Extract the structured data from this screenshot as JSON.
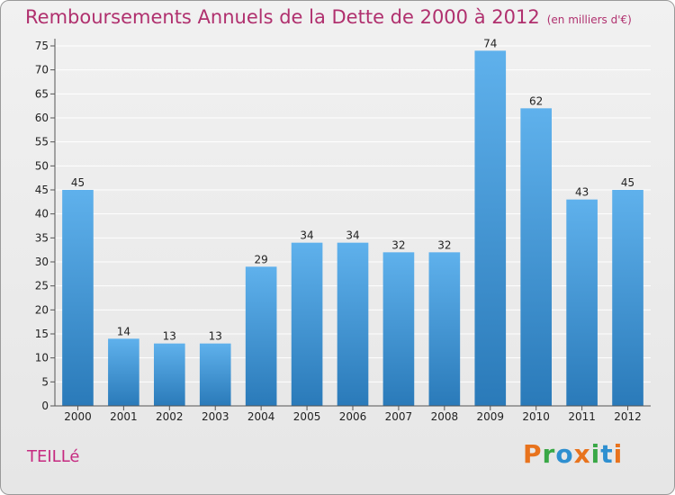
{
  "header": {
    "title": "Remboursements Annuels de la Dette de 2000 à 2012",
    "unit": "(en milliers d'€)"
  },
  "commune": "TEILLé",
  "logo": {
    "text": "Proxiti",
    "colors": [
      "#e8731d",
      "#39a846",
      "#2e8fd0",
      "#e8731d",
      "#39a846",
      "#2e8fd0",
      "#e8731d"
    ]
  },
  "colors": {
    "bar_top": "#5fb1ec",
    "bar_bottom": "#2a7ab9",
    "grid": "#ffffff",
    "axis": "#555555",
    "title": "#b0306e"
  },
  "chart_data": {
    "type": "bar",
    "title": "Remboursements Annuels de la Dette de 2000 à 2012",
    "xlabel": "",
    "ylabel": "",
    "categories": [
      "2000",
      "2001",
      "2002",
      "2003",
      "2004",
      "2005",
      "2006",
      "2007",
      "2008",
      "2009",
      "2010",
      "2011",
      "2012"
    ],
    "values": [
      45,
      14,
      13,
      13,
      29,
      34,
      34,
      32,
      32,
      74,
      62,
      43,
      45
    ],
    "ylim": [
      0,
      75
    ],
    "yticks": [
      0,
      5,
      10,
      15,
      20,
      25,
      30,
      35,
      40,
      45,
      50,
      55,
      60,
      65,
      70,
      75
    ],
    "grid": true,
    "data_labels": true
  }
}
